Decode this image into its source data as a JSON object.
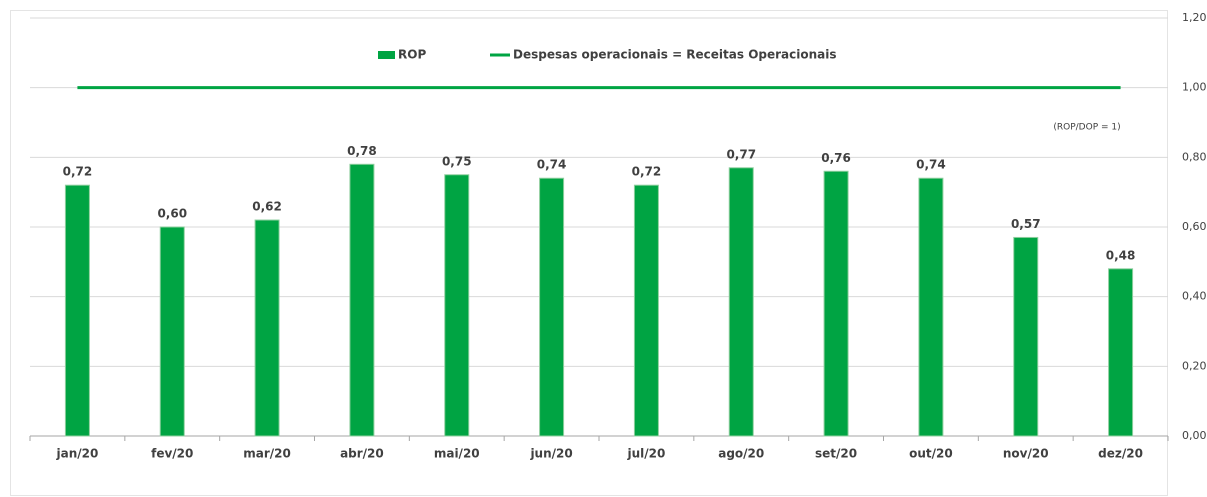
{
  "chart_data": {
    "type": "bar",
    "categories": [
      "jan/20",
      "fev/20",
      "mar/20",
      "abr/20",
      "mai/20",
      "jun/20",
      "jul/20",
      "ago/20",
      "set/20",
      "out/20",
      "nov/20",
      "dez/20"
    ],
    "series": [
      {
        "name": "ROP",
        "type": "bar",
        "color": "#00a443",
        "values": [
          0.72,
          0.6,
          0.62,
          0.78,
          0.75,
          0.74,
          0.72,
          0.77,
          0.76,
          0.74,
          0.57,
          0.48
        ],
        "value_labels": [
          "0,72",
          "0,60",
          "0,62",
          "0,78",
          "0,75",
          "0,74",
          "0,72",
          "0,77",
          "0,76",
          "0,74",
          "0,57",
          "0,48"
        ]
      },
      {
        "name": "Despesas operacionais = Receitas Operacionais",
        "type": "line",
        "color": "#00a443",
        "values": [
          1,
          1,
          1,
          1,
          1,
          1,
          1,
          1,
          1,
          1,
          1,
          1
        ]
      }
    ],
    "annotation": "(ROP/DOP = 1)",
    "ylim": [
      0,
      1.2
    ],
    "yticks": [
      {
        "value": 0,
        "label": "0,00"
      },
      {
        "value": 0.2,
        "label": "0,20"
      },
      {
        "value": 0.4,
        "label": "0,40"
      },
      {
        "value": 0.6,
        "label": "0,60"
      },
      {
        "value": 0.8,
        "label": "0,80"
      },
      {
        "value": 1.0,
        "label": "1,00"
      },
      {
        "value": 1.2,
        "label": "1,20"
      }
    ],
    "grid": true,
    "legend": "top"
  }
}
